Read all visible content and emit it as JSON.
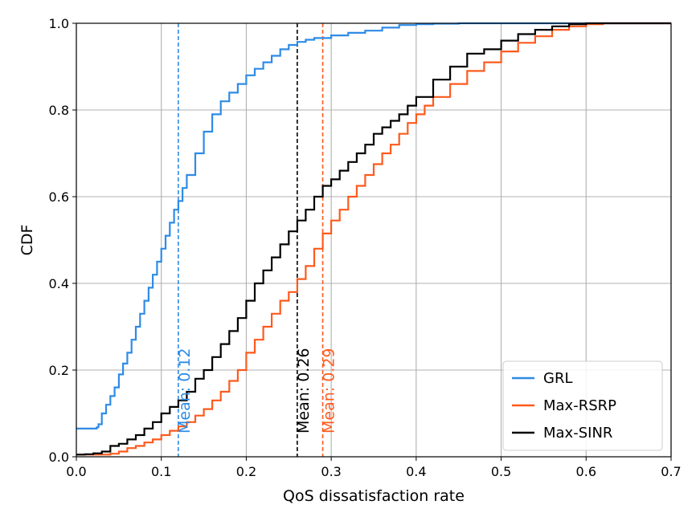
{
  "chart_data": {
    "type": "line",
    "title": "",
    "xlabel": "QoS dissatisfaction rate",
    "ylabel": "CDF",
    "xlim": [
      0.0,
      0.7
    ],
    "ylim": [
      0.0,
      1.0
    ],
    "xticks": [
      0.0,
      0.1,
      0.2,
      0.3,
      0.4,
      0.5,
      0.6,
      0.7
    ],
    "yticks": [
      0.0,
      0.2,
      0.4,
      0.6,
      0.8,
      1.0
    ],
    "xtick_labels": [
      "0.0",
      "0.1",
      "0.2",
      "0.3",
      "0.4",
      "0.5",
      "0.6",
      "0.7"
    ],
    "ytick_labels": [
      "0.0",
      "0.2",
      "0.4",
      "0.6",
      "0.8",
      "1.0"
    ],
    "grid": true,
    "legend_position": "bottom-right",
    "series": [
      {
        "name": "GRL",
        "color": "#2e8be6",
        "x": [
          0.0,
          0.024,
          0.026,
          0.03,
          0.035,
          0.04,
          0.045,
          0.05,
          0.055,
          0.06,
          0.065,
          0.07,
          0.075,
          0.08,
          0.085,
          0.09,
          0.095,
          0.1,
          0.105,
          0.11,
          0.115,
          0.12,
          0.125,
          0.13,
          0.14,
          0.15,
          0.16,
          0.17,
          0.18,
          0.19,
          0.2,
          0.21,
          0.22,
          0.23,
          0.24,
          0.25,
          0.26,
          0.27,
          0.28,
          0.3,
          0.32,
          0.34,
          0.36,
          0.38,
          0.4,
          0.42,
          0.45
        ],
        "y": [
          0.065,
          0.068,
          0.075,
          0.1,
          0.12,
          0.14,
          0.16,
          0.19,
          0.215,
          0.24,
          0.27,
          0.3,
          0.33,
          0.36,
          0.39,
          0.42,
          0.45,
          0.48,
          0.51,
          0.54,
          0.57,
          0.59,
          0.62,
          0.65,
          0.7,
          0.75,
          0.79,
          0.82,
          0.84,
          0.86,
          0.88,
          0.895,
          0.91,
          0.925,
          0.94,
          0.95,
          0.957,
          0.962,
          0.966,
          0.972,
          0.978,
          0.983,
          0.99,
          0.996,
          0.998,
          0.999,
          1.0
        ]
      },
      {
        "name": "Max-RSRP",
        "color": "#fe5a1d",
        "x": [
          0.0,
          0.04,
          0.05,
          0.06,
          0.07,
          0.08,
          0.09,
          0.1,
          0.11,
          0.12,
          0.13,
          0.14,
          0.15,
          0.16,
          0.17,
          0.18,
          0.19,
          0.2,
          0.21,
          0.22,
          0.23,
          0.24,
          0.25,
          0.26,
          0.27,
          0.28,
          0.29,
          0.3,
          0.31,
          0.32,
          0.33,
          0.34,
          0.35,
          0.36,
          0.37,
          0.38,
          0.39,
          0.4,
          0.41,
          0.42,
          0.44,
          0.46,
          0.48,
          0.5,
          0.52,
          0.54,
          0.56,
          0.58,
          0.6,
          0.62
        ],
        "y": [
          0.005,
          0.007,
          0.012,
          0.02,
          0.025,
          0.033,
          0.04,
          0.05,
          0.06,
          0.07,
          0.08,
          0.095,
          0.11,
          0.13,
          0.15,
          0.175,
          0.2,
          0.24,
          0.27,
          0.3,
          0.33,
          0.36,
          0.38,
          0.41,
          0.44,
          0.48,
          0.515,
          0.545,
          0.57,
          0.6,
          0.625,
          0.65,
          0.675,
          0.7,
          0.72,
          0.745,
          0.77,
          0.79,
          0.81,
          0.83,
          0.86,
          0.89,
          0.91,
          0.935,
          0.955,
          0.97,
          0.985,
          0.993,
          0.998,
          1.0
        ]
      },
      {
        "name": "Max-SINR",
        "color": "#000000",
        "x": [
          0.0,
          0.01,
          0.02,
          0.03,
          0.04,
          0.05,
          0.06,
          0.07,
          0.08,
          0.09,
          0.1,
          0.11,
          0.12,
          0.13,
          0.14,
          0.15,
          0.16,
          0.17,
          0.18,
          0.19,
          0.2,
          0.21,
          0.22,
          0.23,
          0.24,
          0.25,
          0.26,
          0.27,
          0.28,
          0.29,
          0.3,
          0.31,
          0.32,
          0.33,
          0.34,
          0.35,
          0.36,
          0.37,
          0.38,
          0.39,
          0.4,
          0.42,
          0.44,
          0.46,
          0.48,
          0.5,
          0.52,
          0.54,
          0.56,
          0.58,
          0.6
        ],
        "y": [
          0.005,
          0.006,
          0.008,
          0.012,
          0.025,
          0.03,
          0.04,
          0.05,
          0.065,
          0.08,
          0.1,
          0.115,
          0.13,
          0.15,
          0.18,
          0.2,
          0.23,
          0.26,
          0.29,
          0.32,
          0.36,
          0.4,
          0.43,
          0.46,
          0.49,
          0.52,
          0.545,
          0.57,
          0.6,
          0.625,
          0.64,
          0.66,
          0.68,
          0.7,
          0.72,
          0.745,
          0.76,
          0.775,
          0.79,
          0.81,
          0.83,
          0.87,
          0.9,
          0.93,
          0.94,
          0.96,
          0.975,
          0.985,
          0.993,
          0.998,
          1.0
        ]
      }
    ],
    "mean_lines": [
      {
        "name": "GRL",
        "value": 0.12,
        "label": "Mean: 0.12",
        "color": "#2e8be6"
      },
      {
        "name": "Max-SINR",
        "value": 0.26,
        "label": "Mean: 0.26",
        "color": "#000000"
      },
      {
        "name": "Max-RSRP",
        "value": 0.29,
        "label": "Mean: 0.29",
        "color": "#fe5a1d"
      }
    ],
    "legend": [
      {
        "label": "GRL",
        "color": "#2e8be6"
      },
      {
        "label": "Max-RSRP",
        "color": "#fe5a1d"
      },
      {
        "label": "Max-SINR",
        "color": "#000000"
      }
    ]
  }
}
